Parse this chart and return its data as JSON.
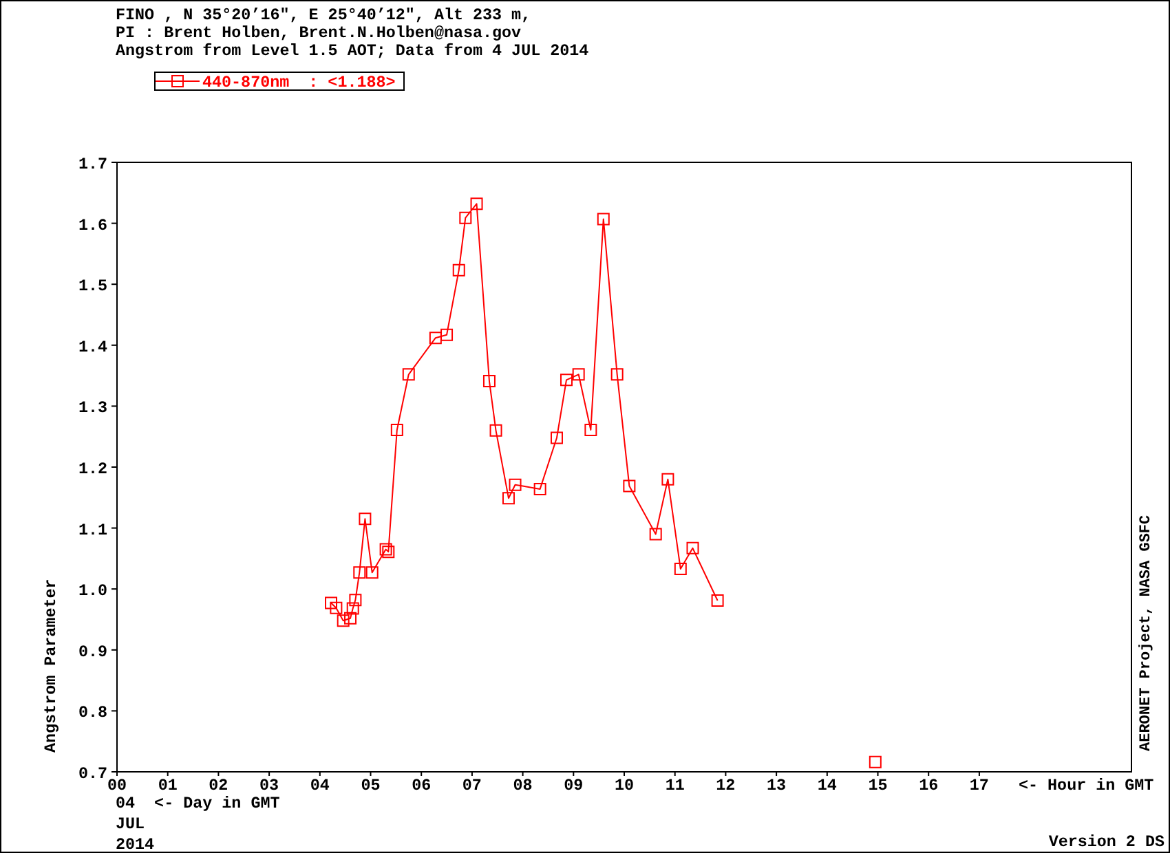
{
  "chart_data": {
    "type": "line",
    "title": "FINO , N 35°20’16\", E 25°40’12\", Alt 233 m,",
    "subtitle": "PI : Brent Holben, Brent.N.Holben@nasa.gov\nAngstrom from Level 1.5 AOT; Data from 4 JUL 2014",
    "xlabel": "<- Hour in GMT",
    "ylabel": "Angstrom Parameter",
    "annotations": [
      "04  <- Day in GMT",
      "JUL",
      "2014",
      "AERONET Project, NASA GSFC",
      "Version 2 DS"
    ],
    "xlim": [
      0,
      20
    ],
    "xticks": [
      {
        "value": 0,
        "label": "00"
      },
      {
        "value": 1,
        "label": "01"
      },
      {
        "value": 2,
        "label": "02"
      },
      {
        "value": 3,
        "label": "03"
      },
      {
        "value": 4,
        "label": "04"
      },
      {
        "value": 5,
        "label": "05"
      },
      {
        "value": 6,
        "label": "06"
      },
      {
        "value": 7,
        "label": "07"
      },
      {
        "value": 8,
        "label": "08"
      },
      {
        "value": 9,
        "label": "09"
      },
      10,
      11,
      12,
      13,
      14,
      15,
      16,
      17
    ],
    "ylim": [
      0.7,
      1.7
    ],
    "yticks": [
      0.7,
      0.8,
      0.9,
      {
        "value": 1,
        "label": "1.0"
      },
      1.1,
      1.2,
      1.3,
      1.4,
      1.5,
      1.6,
      1.7
    ],
    "legend": "top left",
    "marker": "square",
    "line_style": "solid",
    "series": [
      {
        "name": "440-870nm  : <1.188>",
        "color": "#ff0000",
        "x": [
          4.22,
          4.32,
          4.46,
          4.6,
          4.65,
          4.7,
          4.78,
          4.89,
          5.03,
          5.3,
          5.35,
          5.52,
          5.75,
          6.28,
          6.5,
          6.74,
          6.87,
          7.09,
          7.34,
          7.47,
          7.72,
          7.85,
          8.34,
          8.67,
          8.86,
          9.1,
          9.34,
          9.59,
          9.86,
          10.1,
          10.62,
          10.86,
          11.11,
          11.35,
          11.84
        ],
        "values": [
          0.977,
          0.969,
          0.948,
          0.952,
          0.968,
          0.982,
          1.027,
          1.115,
          1.027,
          1.065,
          1.061,
          1.261,
          1.352,
          1.412,
          1.417,
          1.523,
          1.609,
          1.632,
          1.341,
          1.26,
          1.149,
          1.171,
          1.164,
          1.248,
          1.343,
          1.352,
          1.261,
          1.607,
          1.352,
          1.169,
          1.09,
          1.18,
          1.033,
          1.067,
          0.981
        ]
      },
      {
        "type": "scatter",
        "color": "#ff0000",
        "x": [
          14.95
        ],
        "values": [
          0.716
        ]
      }
    ]
  }
}
